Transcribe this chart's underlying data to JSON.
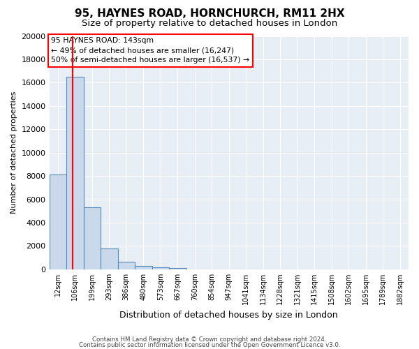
{
  "title": "95, HAYNES ROAD, HORNCHURCH, RM11 2HX",
  "subtitle": "Size of property relative to detached houses in London",
  "xlabel": "Distribution of detached houses by size in London",
  "ylabel": "Number of detached properties",
  "bar_labels": [
    "12sqm",
    "106sqm",
    "199sqm",
    "293sqm",
    "386sqm",
    "480sqm",
    "573sqm",
    "667sqm",
    "760sqm",
    "854sqm",
    "947sqm",
    "1041sqm",
    "1134sqm",
    "1228sqm",
    "1321sqm",
    "1415sqm",
    "1508sqm",
    "1602sqm",
    "1695sqm",
    "1789sqm",
    "1882sqm"
  ],
  "bar_values": [
    8100,
    16500,
    5300,
    1800,
    650,
    300,
    150,
    100,
    0,
    0,
    0,
    0,
    0,
    0,
    0,
    0,
    0,
    0,
    0,
    0,
    0
  ],
  "bar_color": "#c9d9eb",
  "bar_edge_color": "#5588bb",
  "bar_linewidth": 0.8,
  "red_line_x": 1.37,
  "annotation_line1": "95 HAYNES ROAD: 143sqm",
  "annotation_line2": "← 49% of detached houses are smaller (16,247)",
  "annotation_line3": "50% of semi-detached houses are larger (16,537) →",
  "ylim": [
    0,
    20000
  ],
  "yticks": [
    0,
    2000,
    4000,
    6000,
    8000,
    10000,
    12000,
    14000,
    16000,
    18000,
    20000
  ],
  "background_color": "#ffffff",
  "plot_bg_color": "#e8eef6",
  "grid_color": "#ffffff",
  "title_fontsize": 11,
  "subtitle_fontsize": 9.5,
  "footer_line1": "Contains HM Land Registry data © Crown copyright and database right 2024.",
  "footer_line2": "Contains public sector information licensed under the Open Government Licence v3.0."
}
